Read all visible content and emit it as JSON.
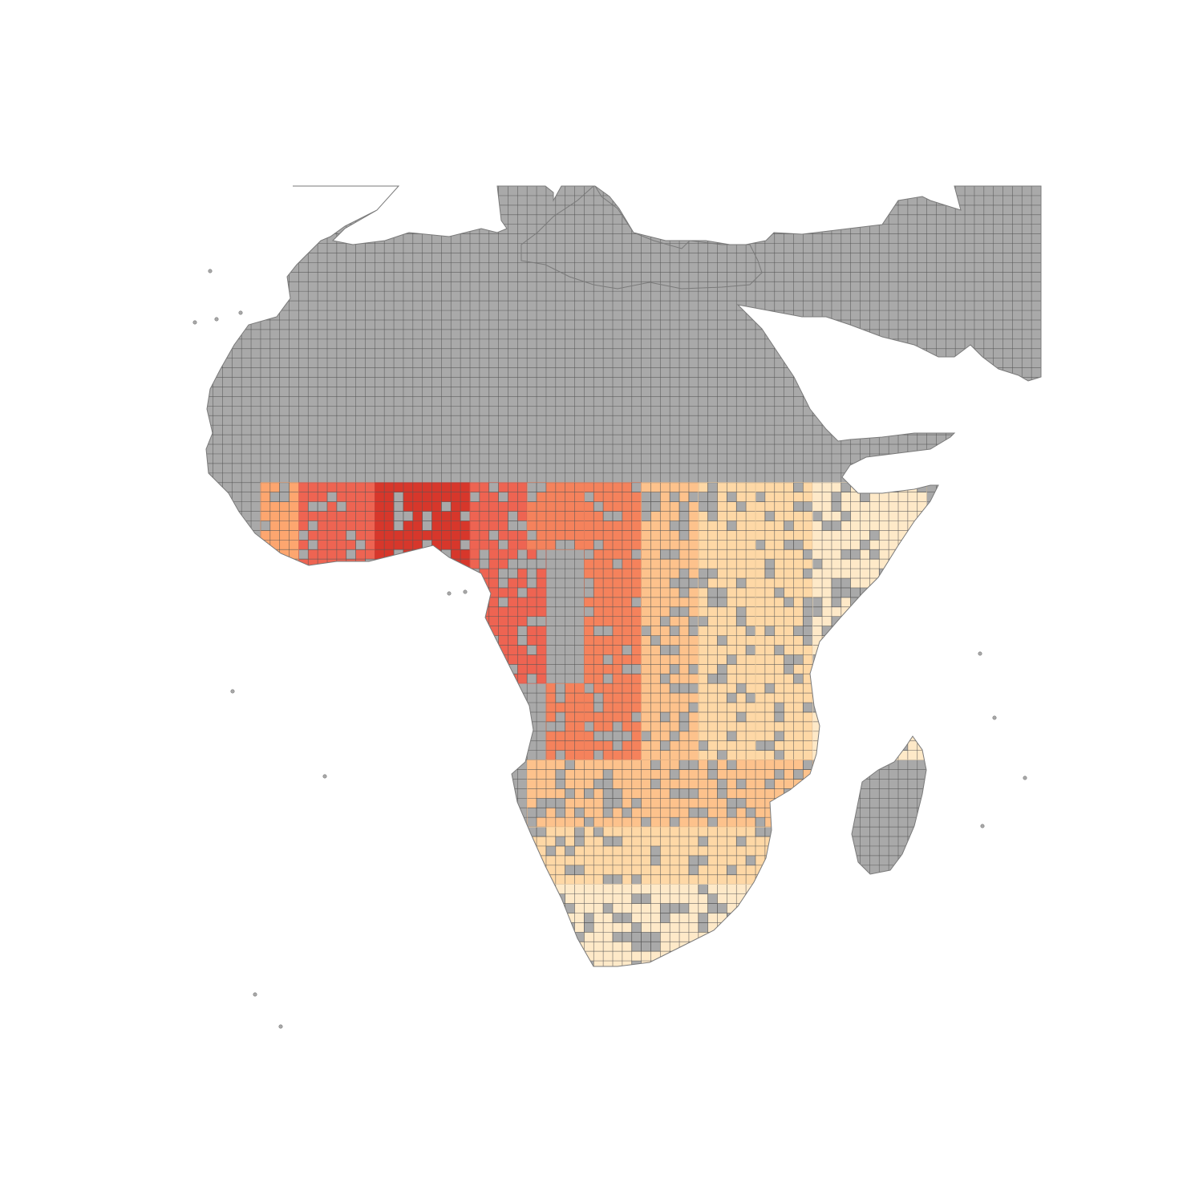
{
  "map": {
    "projection": "equirectangular",
    "lon_range": [
      -26,
      64
    ],
    "lat_range": [
      -40,
      42
    ],
    "cell_size_deg": 1,
    "colors": {
      "background": "#ffffff",
      "nodata_fill": "#a9a9a9",
      "grid_line": "#555555",
      "coast_line": "#7a7a7a"
    },
    "color_scale": [
      "#d7372b",
      "#ee6452",
      "#f5825c",
      "#fda66f",
      "#fdc28c",
      "#fed8a6",
      "#fee9c8"
    ],
    "bands": [
      {
        "lon": [
          -18,
          -14
        ],
        "lat": [
          0,
          11
        ],
        "level": 3
      },
      {
        "lon": [
          -14,
          -6
        ],
        "lat": [
          0,
          11
        ],
        "level": 1
      },
      {
        "lon": [
          -6,
          4
        ],
        "lat": [
          0,
          11
        ],
        "level": 0
      },
      {
        "lon": [
          4,
          10
        ],
        "lat": [
          4,
          11
        ],
        "level": 1
      },
      {
        "lon": [
          4,
          12
        ],
        "lat": [
          -10,
          4
        ],
        "level": 1
      },
      {
        "lon": [
          10,
          16
        ],
        "lat": [
          4,
          11
        ],
        "level": 2
      },
      {
        "lon": [
          12,
          16
        ],
        "lat": [
          -18,
          -10
        ],
        "level": 2
      },
      {
        "lon": [
          16,
          22
        ],
        "lat": [
          -18,
          11
        ],
        "level": 2
      },
      {
        "lon": [
          22,
          28
        ],
        "lat": [
          -18,
          11
        ],
        "level": 4
      },
      {
        "lon": [
          28,
          34
        ],
        "lat": [
          -18,
          11
        ],
        "level": 5
      },
      {
        "lon": [
          34,
          40
        ],
        "lat": [
          -18,
          11
        ],
        "level": 5
      },
      {
        "lon": [
          40,
          52
        ],
        "lat": [
          -18,
          11
        ],
        "level": 6
      },
      {
        "lon": [
          10,
          40
        ],
        "lat": [
          -25,
          -18
        ],
        "level": 4
      },
      {
        "lon": [
          10,
          40
        ],
        "lat": [
          -31,
          -25
        ],
        "level": 5
      },
      {
        "lon": [
          10,
          40
        ],
        "lat": [
          -40,
          -31
        ],
        "level": 6
      }
    ],
    "nodata_fraction_in_colored": 0.2
  }
}
